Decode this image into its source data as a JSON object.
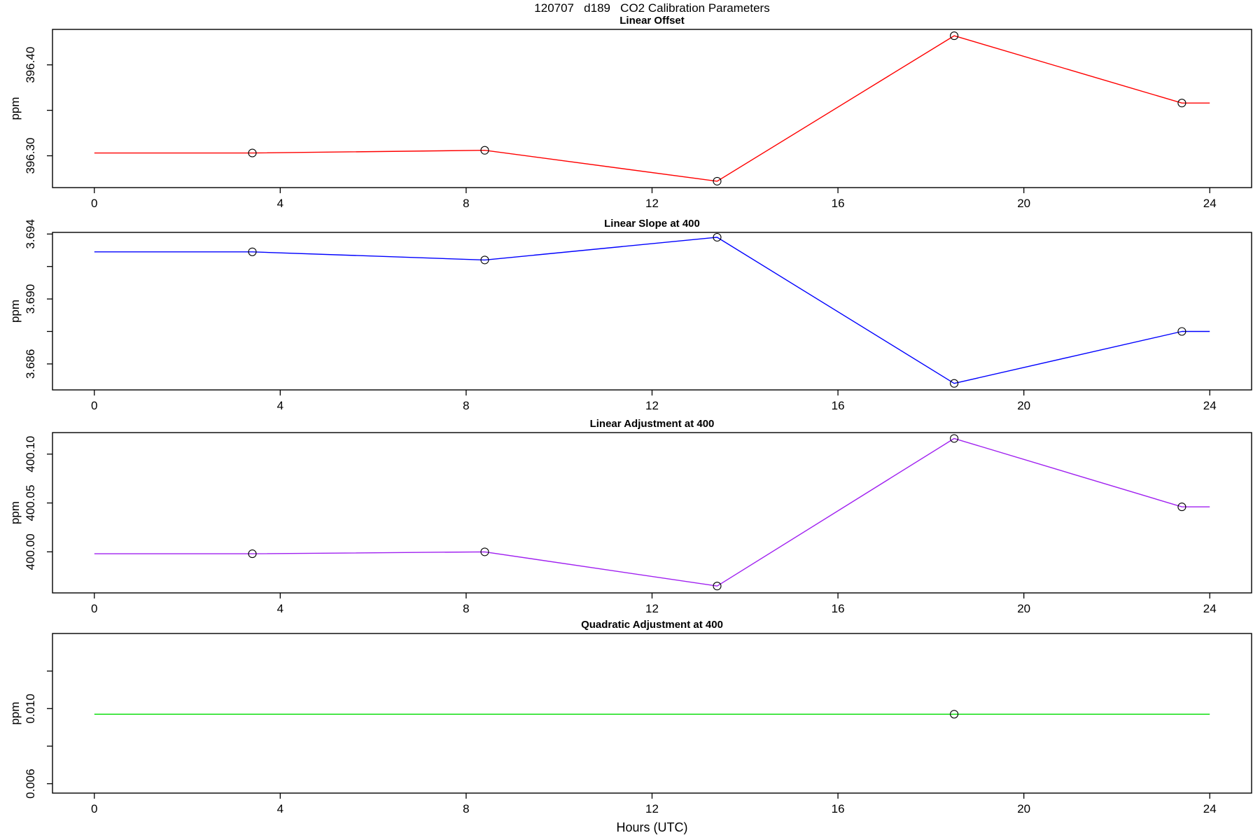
{
  "page": {
    "main_title": "120707   d189   CO2 Calibration Parameters",
    "x_axis_label": "Hours (UTC)"
  },
  "chart_data": {
    "type": "line",
    "title": "120707   d189   CO2 Calibration Parameters",
    "xlabel": "Hours (UTC)",
    "layout_hint": "four stacked panels sharing one x axis, R base-graphics style, open-circle markers, no grid, no legend",
    "xlim": [
      -0.9,
      24.9
    ],
    "xticks": [
      0,
      4,
      8,
      12,
      16,
      20,
      24
    ],
    "sample_hours": [
      3.4,
      8.4,
      13.4,
      18.5,
      23.4
    ],
    "marker": "open-circle",
    "panels": [
      {
        "title": "Linear Offset",
        "ylabel": "ppm",
        "color": "#ff0000",
        "ylim": [
          396.265,
          396.439
        ],
        "yticks": [
          {
            "value": 396.3,
            "label": "396.30"
          },
          {
            "value": 396.35,
            "label": ""
          },
          {
            "value": 396.4,
            "label": "396.40"
          }
        ],
        "points": [
          {
            "x": 3.4,
            "y": 396.303
          },
          {
            "x": 8.4,
            "y": 396.306
          },
          {
            "x": 13.4,
            "y": 396.272
          },
          {
            "x": 18.5,
            "y": 396.432
          },
          {
            "x": 23.4,
            "y": 396.358
          }
        ],
        "line": [
          {
            "x": 0,
            "y": 396.303
          },
          {
            "x": 3.4,
            "y": 396.303
          },
          {
            "x": 8.4,
            "y": 396.306
          },
          {
            "x": 13.4,
            "y": 396.272
          },
          {
            "x": 18.5,
            "y": 396.432
          },
          {
            "x": 23.4,
            "y": 396.358
          },
          {
            "x": 24,
            "y": 396.358
          }
        ]
      },
      {
        "title": "Linear Slope at 400",
        "ylabel": "ppm",
        "color": "#0000ff",
        "ylim": [
          3.6844,
          3.6941
        ],
        "yticks": [
          {
            "value": 3.686,
            "label": "3.686"
          },
          {
            "value": 3.688,
            "label": ""
          },
          {
            "value": 3.69,
            "label": "3.690"
          },
          {
            "value": 3.692,
            "label": ""
          },
          {
            "value": 3.694,
            "label": "3.694"
          }
        ],
        "points": [
          {
            "x": 3.4,
            "y": 3.6929
          },
          {
            "x": 8.4,
            "y": 3.6924
          },
          {
            "x": 13.4,
            "y": 3.6938
          },
          {
            "x": 18.5,
            "y": 3.6848
          },
          {
            "x": 23.4,
            "y": 3.688
          }
        ],
        "line": [
          {
            "x": 0,
            "y": 3.6929
          },
          {
            "x": 3.4,
            "y": 3.6929
          },
          {
            "x": 8.4,
            "y": 3.6924
          },
          {
            "x": 13.4,
            "y": 3.6938
          },
          {
            "x": 18.5,
            "y": 3.6848
          },
          {
            "x": 23.4,
            "y": 3.688
          },
          {
            "x": 24,
            "y": 3.688
          }
        ]
      },
      {
        "title": "Linear Adjustment at 400",
        "ylabel": "ppm",
        "color": "#a020f0",
        "ylim": [
          399.958,
          400.122
        ],
        "yticks": [
          {
            "value": 400.0,
            "label": "400.00"
          },
          {
            "value": 400.05,
            "label": "400.05"
          },
          {
            "value": 400.1,
            "label": "400.10"
          }
        ],
        "points": [
          {
            "x": 3.4,
            "y": 399.998
          },
          {
            "x": 8.4,
            "y": 400.0
          },
          {
            "x": 13.4,
            "y": 399.965
          },
          {
            "x": 18.5,
            "y": 400.116
          },
          {
            "x": 23.4,
            "y": 400.046
          }
        ],
        "line": [
          {
            "x": 0,
            "y": 399.998
          },
          {
            "x": 3.4,
            "y": 399.998
          },
          {
            "x": 8.4,
            "y": 400.0
          },
          {
            "x": 13.4,
            "y": 399.965
          },
          {
            "x": 18.5,
            "y": 400.116
          },
          {
            "x": 23.4,
            "y": 400.046
          },
          {
            "x": 24,
            "y": 400.046
          }
        ]
      },
      {
        "title": "Quadratic Adjustment at 400",
        "ylabel": "ppm",
        "color": "#00dd00",
        "ylim": [
          0.0055,
          0.014
        ],
        "yticks": [
          {
            "value": 0.006,
            "label": "0.006"
          },
          {
            "value": 0.008,
            "label": ""
          },
          {
            "value": 0.01,
            "label": "0.010"
          },
          {
            "value": 0.012,
            "label": ""
          }
        ],
        "points": [
          {
            "x": 18.5,
            "y": 0.0097
          }
        ],
        "line": [
          {
            "x": 0,
            "y": 0.0097
          },
          {
            "x": 24,
            "y": 0.0097
          }
        ]
      }
    ]
  }
}
